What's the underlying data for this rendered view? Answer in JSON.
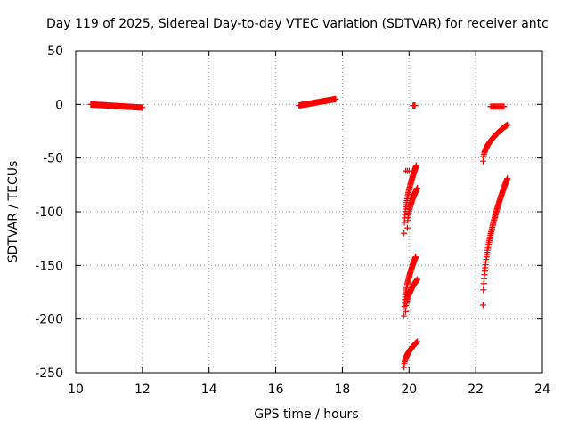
{
  "chart_data": {
    "type": "scatter",
    "title": "Day 119 of 2025, Sidereal Day-to-day VTEC variation (SDTVAR) for receiver antc",
    "xlabel": "GPS time / hours",
    "ylabel": "SDTVAR / TECUs",
    "xlim": [
      10,
      24
    ],
    "ylim": [
      -250,
      50
    ],
    "xticks": [
      10,
      12,
      14,
      16,
      18,
      20,
      22,
      24
    ],
    "yticks": [
      50,
      0,
      -50,
      -100,
      -150,
      -200,
      -250
    ],
    "grid": true,
    "marker": "+",
    "series_color": "#ff0000",
    "segments": [
      {
        "x0": 10.45,
        "x1": 12.0,
        "y0": 0,
        "y1": -3,
        "n": 90,
        "curve": "linear"
      },
      {
        "x0": 16.7,
        "x1": 17.8,
        "y0": -1,
        "y1": 5,
        "n": 60,
        "curve": "linear"
      },
      {
        "x0": 20.12,
        "x1": 20.18,
        "y0": -1,
        "y1": -1,
        "n": 3,
        "curve": "linear"
      },
      {
        "x0": 22.45,
        "x1": 22.85,
        "y0": -2,
        "y1": -2,
        "n": 14,
        "curve": "linear"
      },
      {
        "x0": 19.9,
        "x1": 20.0,
        "y0": -62,
        "y1": -62,
        "n": 3,
        "curve": "linear"
      },
      {
        "x0": 19.85,
        "x1": 20.22,
        "y0": -120,
        "y1": -57,
        "n": 40,
        "curve": "sqrt"
      },
      {
        "x0": 19.95,
        "x1": 20.25,
        "y0": -115,
        "y1": -78,
        "n": 30,
        "curve": "sqrt"
      },
      {
        "x0": 19.85,
        "x1": 20.2,
        "y0": -197,
        "y1": -142,
        "n": 40,
        "curve": "sqrt"
      },
      {
        "x0": 19.9,
        "x1": 20.25,
        "y0": -193,
        "y1": -163,
        "n": 30,
        "curve": "sqrt"
      },
      {
        "x0": 19.85,
        "x1": 20.25,
        "y0": -245,
        "y1": -221,
        "n": 40,
        "curve": "sqrt"
      },
      {
        "x0": 22.22,
        "x1": 22.95,
        "y0": -53,
        "y1": -19,
        "n": 60,
        "curve": "sqrt"
      },
      {
        "x0": 22.22,
        "x1": 22.95,
        "y0": -187,
        "y1": -69,
        "n": 70,
        "curve": "sqrt"
      }
    ]
  }
}
